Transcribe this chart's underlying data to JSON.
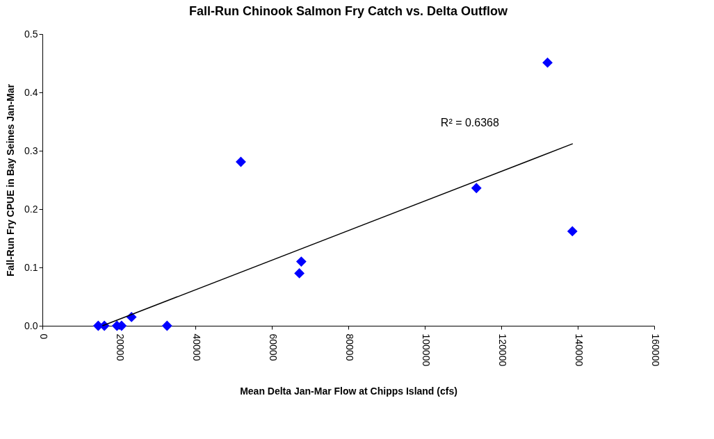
{
  "chart_data": {
    "type": "scatter",
    "title": "Fall-Run Chinook Salmon Fry Catch vs. Delta Outflow",
    "xlabel": "Mean Delta Jan-Mar Flow at Chipps Island (cfs)",
    "ylabel": "Fall-Run Fry CPUE in Bay Seines Jan-Mar",
    "marker": "diamond",
    "grid": false,
    "xlim": [
      0,
      160000
    ],
    "xticks": [
      0,
      20000,
      40000,
      60000,
      80000,
      100000,
      120000,
      140000,
      160000
    ],
    "ylim": [
      0,
      0.5
    ],
    "yticks": [
      {
        "value": 0,
        "label": "0.0"
      },
      0.1,
      0.2,
      0.3,
      0.4,
      0.5
    ],
    "series": [
      {
        "color": "#0000ff",
        "x": [
          14600,
          16200,
          19500,
          20700,
          23300,
          32600,
          51900,
          67200,
          67700,
          113500,
          132100,
          138600
        ],
        "values": [
          0,
          0,
          0,
          0,
          0.015,
          0,
          0.281,
          0.09,
          0.11,
          0.236,
          0.451,
          0.162
        ]
      },
      {
        "type": "line",
        "color": "#000000",
        "line_style": "solid",
        "marker": "none",
        "x": [
          15700,
          138700
        ],
        "values": [
          0,
          0.312
        ]
      }
    ],
    "annotations": [
      "R² = 0.6368"
    ]
  }
}
